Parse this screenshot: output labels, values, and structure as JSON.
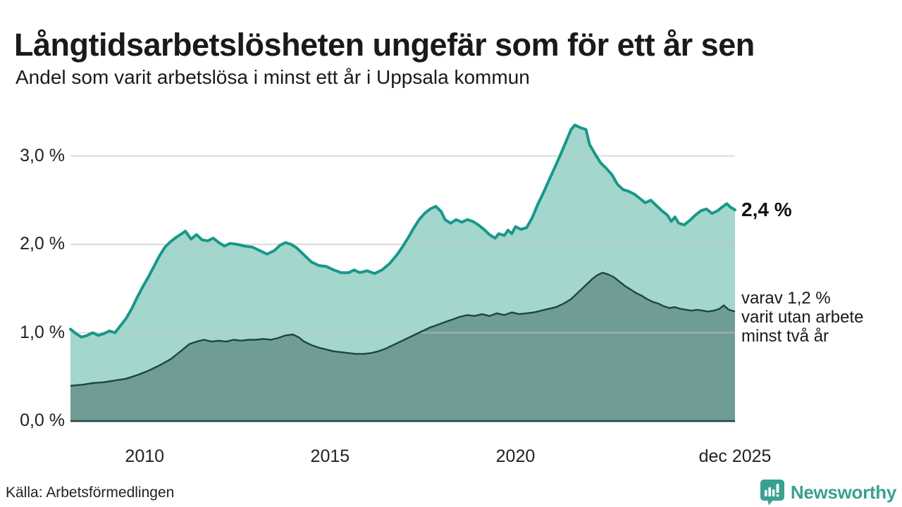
{
  "header": {
    "title": "Långtidsarbetslösheten ungefär som för ett år sen",
    "subtitle": "Andel som varit arbetslösa i minst ett år i Uppsala kommun"
  },
  "chart_data": {
    "type": "area",
    "title": "Långtidsarbetslösheten ungefär som för ett år sen",
    "subtitle": "Andel som varit arbetslösa i minst ett år i Uppsala kommun",
    "unit": "%",
    "grid": "horizontal-only",
    "x_axis": {
      "min": 2008.0,
      "max": 2025.92,
      "ticks": [
        {
          "year": 2010,
          "label": "2010"
        },
        {
          "year": 2015,
          "label": "2015"
        },
        {
          "year": 2020,
          "label": "2020"
        },
        {
          "year": 2025.92,
          "label": "dec 2025"
        }
      ]
    },
    "y_axis": {
      "min": 0,
      "max": 3.49,
      "ticks": [
        {
          "value": 0,
          "label": "0,0 %"
        },
        {
          "value": 1,
          "label": "1,0 %"
        },
        {
          "value": 2,
          "label": "2,0 %"
        },
        {
          "value": 3,
          "label": "3,0 %"
        }
      ]
    },
    "series": [
      {
        "id": "unemployed_one_year_plus",
        "latest_label": "2,4 %",
        "points": [
          [
            2008.0,
            1.04
          ],
          [
            2008.15,
            0.99
          ],
          [
            2008.3,
            0.95
          ],
          [
            2008.45,
            0.97
          ],
          [
            2008.6,
            1.0
          ],
          [
            2008.75,
            0.97
          ],
          [
            2008.9,
            0.99
          ],
          [
            2009.05,
            1.02
          ],
          [
            2009.2,
            1.0
          ],
          [
            2009.35,
            1.08
          ],
          [
            2009.5,
            1.16
          ],
          [
            2009.65,
            1.27
          ],
          [
            2009.8,
            1.4
          ],
          [
            2009.95,
            1.52
          ],
          [
            2010.1,
            1.63
          ],
          [
            2010.25,
            1.75
          ],
          [
            2010.4,
            1.87
          ],
          [
            2010.55,
            1.97
          ],
          [
            2010.7,
            2.03
          ],
          [
            2010.85,
            2.08
          ],
          [
            2011.0,
            2.12
          ],
          [
            2011.1,
            2.15
          ],
          [
            2011.25,
            2.06
          ],
          [
            2011.4,
            2.11
          ],
          [
            2011.55,
            2.05
          ],
          [
            2011.7,
            2.04
          ],
          [
            2011.85,
            2.07
          ],
          [
            2012.0,
            2.02
          ],
          [
            2012.15,
            1.98
          ],
          [
            2012.3,
            2.01
          ],
          [
            2012.5,
            2.0
          ],
          [
            2012.7,
            1.98
          ],
          [
            2012.9,
            1.97
          ],
          [
            2013.1,
            1.93
          ],
          [
            2013.3,
            1.89
          ],
          [
            2013.5,
            1.93
          ],
          [
            2013.65,
            1.99
          ],
          [
            2013.8,
            2.02
          ],
          [
            2013.95,
            2.0
          ],
          [
            2014.1,
            1.96
          ],
          [
            2014.3,
            1.88
          ],
          [
            2014.5,
            1.8
          ],
          [
            2014.7,
            1.76
          ],
          [
            2014.9,
            1.75
          ],
          [
            2015.1,
            1.71
          ],
          [
            2015.3,
            1.68
          ],
          [
            2015.5,
            1.68
          ],
          [
            2015.65,
            1.71
          ],
          [
            2015.8,
            1.68
          ],
          [
            2016.0,
            1.7
          ],
          [
            2016.2,
            1.67
          ],
          [
            2016.4,
            1.71
          ],
          [
            2016.6,
            1.78
          ],
          [
            2016.8,
            1.88
          ],
          [
            2016.95,
            1.97
          ],
          [
            2017.1,
            2.07
          ],
          [
            2017.25,
            2.18
          ],
          [
            2017.4,
            2.28
          ],
          [
            2017.55,
            2.35
          ],
          [
            2017.7,
            2.4
          ],
          [
            2017.85,
            2.43
          ],
          [
            2018.0,
            2.37
          ],
          [
            2018.1,
            2.28
          ],
          [
            2018.25,
            2.24
          ],
          [
            2018.4,
            2.28
          ],
          [
            2018.55,
            2.25
          ],
          [
            2018.7,
            2.28
          ],
          [
            2018.85,
            2.26
          ],
          [
            2019.0,
            2.22
          ],
          [
            2019.15,
            2.17
          ],
          [
            2019.3,
            2.11
          ],
          [
            2019.45,
            2.07
          ],
          [
            2019.55,
            2.12
          ],
          [
            2019.7,
            2.1
          ],
          [
            2019.8,
            2.16
          ],
          [
            2019.9,
            2.12
          ],
          [
            2020.0,
            2.2
          ],
          [
            2020.15,
            2.17
          ],
          [
            2020.3,
            2.19
          ],
          [
            2020.45,
            2.3
          ],
          [
            2020.6,
            2.45
          ],
          [
            2020.75,
            2.58
          ],
          [
            2020.9,
            2.72
          ],
          [
            2021.05,
            2.86
          ],
          [
            2021.2,
            3.0
          ],
          [
            2021.35,
            3.15
          ],
          [
            2021.5,
            3.3
          ],
          [
            2021.6,
            3.35
          ],
          [
            2021.75,
            3.32
          ],
          [
            2021.9,
            3.3
          ],
          [
            2022.0,
            3.13
          ],
          [
            2022.15,
            3.02
          ],
          [
            2022.3,
            2.92
          ],
          [
            2022.45,
            2.86
          ],
          [
            2022.6,
            2.79
          ],
          [
            2022.75,
            2.68
          ],
          [
            2022.9,
            2.62
          ],
          [
            2023.05,
            2.6
          ],
          [
            2023.2,
            2.57
          ],
          [
            2023.35,
            2.52
          ],
          [
            2023.5,
            2.47
          ],
          [
            2023.65,
            2.5
          ],
          [
            2023.8,
            2.44
          ],
          [
            2023.95,
            2.38
          ],
          [
            2024.1,
            2.33
          ],
          [
            2024.2,
            2.26
          ],
          [
            2024.3,
            2.31
          ],
          [
            2024.4,
            2.24
          ],
          [
            2024.55,
            2.22
          ],
          [
            2024.7,
            2.27
          ],
          [
            2024.85,
            2.33
          ],
          [
            2025.0,
            2.38
          ],
          [
            2025.15,
            2.4
          ],
          [
            2025.3,
            2.35
          ],
          [
            2025.45,
            2.38
          ],
          [
            2025.6,
            2.43
          ],
          [
            2025.7,
            2.46
          ],
          [
            2025.8,
            2.42
          ],
          [
            2025.92,
            2.39
          ]
        ]
      },
      {
        "id": "unemployed_two_years_plus",
        "latest_label": "varav 1,2 %",
        "points": [
          [
            2008.0,
            0.4
          ],
          [
            2008.3,
            0.41
          ],
          [
            2008.6,
            0.43
          ],
          [
            2008.9,
            0.44
          ],
          [
            2009.2,
            0.46
          ],
          [
            2009.5,
            0.48
          ],
          [
            2009.8,
            0.52
          ],
          [
            2010.1,
            0.57
          ],
          [
            2010.4,
            0.63
          ],
          [
            2010.7,
            0.7
          ],
          [
            2011.0,
            0.8
          ],
          [
            2011.2,
            0.87
          ],
          [
            2011.4,
            0.9
          ],
          [
            2011.6,
            0.92
          ],
          [
            2011.8,
            0.9
          ],
          [
            2012.0,
            0.91
          ],
          [
            2012.2,
            0.9
          ],
          [
            2012.4,
            0.92
          ],
          [
            2012.6,
            0.91
          ],
          [
            2012.8,
            0.92
          ],
          [
            2013.0,
            0.92
          ],
          [
            2013.2,
            0.93
          ],
          [
            2013.4,
            0.92
          ],
          [
            2013.6,
            0.94
          ],
          [
            2013.8,
            0.97
          ],
          [
            2014.0,
            0.98
          ],
          [
            2014.15,
            0.95
          ],
          [
            2014.3,
            0.9
          ],
          [
            2014.5,
            0.86
          ],
          [
            2014.7,
            0.83
          ],
          [
            2014.9,
            0.81
          ],
          [
            2015.1,
            0.79
          ],
          [
            2015.3,
            0.78
          ],
          [
            2015.5,
            0.77
          ],
          [
            2015.7,
            0.76
          ],
          [
            2015.9,
            0.76
          ],
          [
            2016.1,
            0.77
          ],
          [
            2016.3,
            0.79
          ],
          [
            2016.5,
            0.82
          ],
          [
            2016.7,
            0.86
          ],
          [
            2016.9,
            0.9
          ],
          [
            2017.1,
            0.94
          ],
          [
            2017.3,
            0.98
          ],
          [
            2017.5,
            1.02
          ],
          [
            2017.7,
            1.06
          ],
          [
            2017.9,
            1.09
          ],
          [
            2018.1,
            1.12
          ],
          [
            2018.3,
            1.15
          ],
          [
            2018.5,
            1.18
          ],
          [
            2018.7,
            1.2
          ],
          [
            2018.9,
            1.19
          ],
          [
            2019.1,
            1.21
          ],
          [
            2019.3,
            1.19
          ],
          [
            2019.5,
            1.22
          ],
          [
            2019.7,
            1.2
          ],
          [
            2019.9,
            1.23
          ],
          [
            2020.1,
            1.21
          ],
          [
            2020.3,
            1.22
          ],
          [
            2020.5,
            1.23
          ],
          [
            2020.7,
            1.25
          ],
          [
            2020.9,
            1.27
          ],
          [
            2021.1,
            1.29
          ],
          [
            2021.3,
            1.33
          ],
          [
            2021.5,
            1.38
          ],
          [
            2021.7,
            1.46
          ],
          [
            2021.9,
            1.54
          ],
          [
            2022.05,
            1.6
          ],
          [
            2022.2,
            1.65
          ],
          [
            2022.35,
            1.68
          ],
          [
            2022.5,
            1.66
          ],
          [
            2022.65,
            1.63
          ],
          [
            2022.8,
            1.58
          ],
          [
            2022.95,
            1.53
          ],
          [
            2023.1,
            1.49
          ],
          [
            2023.25,
            1.45
          ],
          [
            2023.4,
            1.42
          ],
          [
            2023.55,
            1.38
          ],
          [
            2023.7,
            1.35
          ],
          [
            2023.85,
            1.33
          ],
          [
            2024.0,
            1.3
          ],
          [
            2024.15,
            1.28
          ],
          [
            2024.3,
            1.29
          ],
          [
            2024.45,
            1.27
          ],
          [
            2024.6,
            1.26
          ],
          [
            2024.75,
            1.25
          ],
          [
            2024.9,
            1.26
          ],
          [
            2025.05,
            1.25
          ],
          [
            2025.2,
            1.24
          ],
          [
            2025.35,
            1.25
          ],
          [
            2025.5,
            1.27
          ],
          [
            2025.62,
            1.31
          ],
          [
            2025.75,
            1.26
          ],
          [
            2025.92,
            1.24
          ]
        ]
      }
    ]
  },
  "annotations": {
    "latest_total": "2,4 %",
    "two_year_lines": [
      "varav 1,2 %",
      "varit utan arbete",
      "minst två år"
    ]
  },
  "footer": {
    "source": "Källa: Arbetsförmedlingen",
    "brand": "Newsworthy"
  },
  "colors": {
    "line_total": "#17988b",
    "fill_total": "#a3d6cc",
    "line_two_plus": "#1c4741",
    "fill_two_plus": "#6f9d96",
    "gridline": "#c4c4c4",
    "baseline": "#25433d",
    "text": "#1a1a1a",
    "brand_teal": "#3aa091"
  }
}
